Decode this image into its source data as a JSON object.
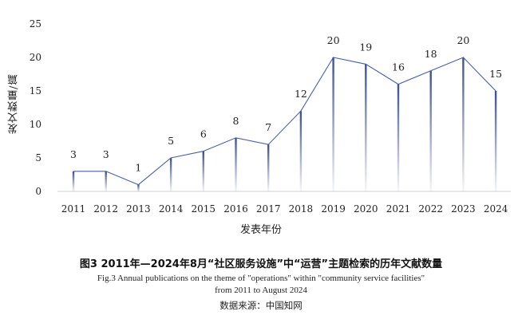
{
  "chart_data": {
    "type": "area",
    "categories": [
      "2011",
      "2012",
      "2013",
      "2014",
      "2015",
      "2016",
      "2017",
      "2018",
      "2019",
      "2020",
      "2021",
      "2022",
      "2023",
      "2024"
    ],
    "values": [
      3,
      3,
      1,
      5,
      6,
      8,
      7,
      12,
      20,
      19,
      16,
      18,
      20,
      15
    ],
    "ylabel": "发文数量/篇",
    "xlabel": "发表年份",
    "ylim": [
      0,
      25
    ],
    "yticks": [
      0,
      5,
      10,
      15,
      20,
      25
    ],
    "grid": false,
    "data_labels": true,
    "line_color": "#4a5f9e"
  },
  "caption": {
    "cn": "图3  2011年—2024年8月“社区服务设施”中“运营”主题检索的历年文献数量",
    "en_line1": "Fig.3   Annual publications on the theme of \"operations\" within \"community service facilities\"",
    "en_line2": "from 2011 to August 2024",
    "source": "数据来源：中国知网"
  }
}
